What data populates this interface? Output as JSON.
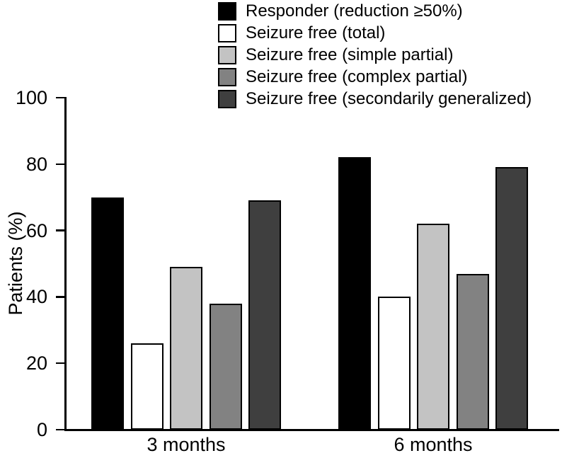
{
  "chart_data": {
    "type": "bar",
    "title": "",
    "ylabel": "Patients (%)",
    "xlabel": "",
    "ylim": [
      0,
      100
    ],
    "yticks": [
      0,
      20,
      40,
      60,
      80,
      100
    ],
    "categories": [
      "3 months",
      "6 months"
    ],
    "series": [
      {
        "name": "Responder (reduction ≥50%)",
        "color": "#000000",
        "values": [
          70,
          82
        ]
      },
      {
        "name": "Seizure free (total)",
        "color": "#ffffff",
        "values": [
          26,
          40
        ]
      },
      {
        "name": "Seizure free (simple partial)",
        "color": "#c3c3c3",
        "values": [
          49,
          62
        ]
      },
      {
        "name": "Seizure free (complex partial)",
        "color": "#828282",
        "values": [
          38,
          47
        ]
      },
      {
        "name": "Seizure free (secondarily generalized)",
        "color": "#3f3f3f",
        "values": [
          69,
          79
        ]
      }
    ],
    "legend_position": "top",
    "grid": false,
    "axis_color": "#000000",
    "bar_outline_color": "#000000"
  }
}
